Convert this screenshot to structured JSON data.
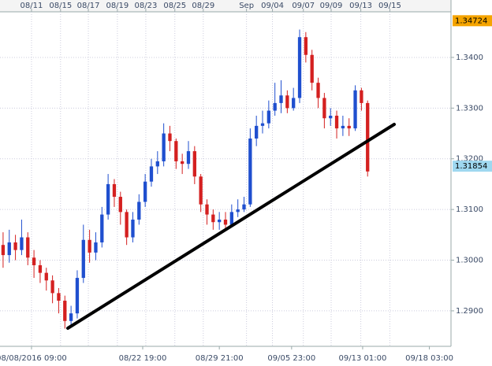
{
  "chart_data": {
    "type": "candlestick",
    "series": {
      "up_color": "#1f4fcf",
      "down_color": "#d42020",
      "open": [
        1.303,
        1.301,
        1.3035,
        1.302,
        1.3045,
        1.3005,
        1.299,
        1.2975,
        1.296,
        1.2935,
        1.292,
        1.288,
        1.2895,
        1.2965,
        1.304,
        1.3015,
        1.3035,
        1.309,
        1.315,
        1.3125,
        1.3095,
        1.3045,
        1.308,
        1.3115,
        1.3155,
        1.3185,
        1.3195,
        1.325,
        1.3235,
        1.3195,
        1.319,
        1.3215,
        1.3165,
        1.311,
        1.309,
        1.3075,
        1.308,
        1.307,
        1.3095,
        1.31,
        1.311,
        1.324,
        1.3265,
        1.327,
        1.3295,
        1.331,
        1.3325,
        1.33,
        1.332,
        1.344,
        1.3405,
        1.335,
        1.332,
        1.328,
        1.3285,
        1.326,
        1.3265,
        1.326,
        1.3335,
        1.331
      ],
      "high": [
        1.3055,
        1.306,
        1.305,
        1.308,
        1.3055,
        1.302,
        1.3,
        1.2985,
        1.297,
        1.2945,
        1.293,
        1.291,
        1.298,
        1.307,
        1.306,
        1.3055,
        1.3105,
        1.317,
        1.316,
        1.3135,
        1.31,
        1.3095,
        1.313,
        1.317,
        1.32,
        1.3215,
        1.327,
        1.3265,
        1.324,
        1.321,
        1.3235,
        1.3225,
        1.317,
        1.312,
        1.31,
        1.3095,
        1.3095,
        1.311,
        1.312,
        1.3125,
        1.326,
        1.3285,
        1.3295,
        1.3315,
        1.335,
        1.3355,
        1.3335,
        1.334,
        1.3455,
        1.345,
        1.3415,
        1.336,
        1.333,
        1.33,
        1.3295,
        1.3285,
        1.328,
        1.3345,
        1.334,
        1.3315
      ],
      "low": [
        1.2985,
        1.2995,
        1.3,
        1.301,
        1.299,
        1.2965,
        1.2955,
        1.294,
        1.2915,
        1.2895,
        1.2865,
        1.287,
        1.2885,
        1.2955,
        1.2995,
        1.3,
        1.3025,
        1.308,
        1.3105,
        1.307,
        1.303,
        1.3035,
        1.307,
        1.3105,
        1.3145,
        1.317,
        1.3185,
        1.3215,
        1.318,
        1.317,
        1.318,
        1.315,
        1.3095,
        1.307,
        1.306,
        1.306,
        1.306,
        1.3065,
        1.3085,
        1.3095,
        1.3105,
        1.3225,
        1.325,
        1.326,
        1.3285,
        1.329,
        1.329,
        1.3295,
        1.331,
        1.339,
        1.3335,
        1.33,
        1.326,
        1.3265,
        1.324,
        1.3245,
        1.3245,
        1.3255,
        1.3295,
        1.3165
      ],
      "close": [
        1.301,
        1.3035,
        1.302,
        1.3045,
        1.3005,
        1.299,
        1.2975,
        1.296,
        1.2935,
        1.292,
        1.288,
        1.2895,
        1.2965,
        1.304,
        1.3015,
        1.3035,
        1.309,
        1.315,
        1.3125,
        1.3095,
        1.3045,
        1.308,
        1.3115,
        1.3155,
        1.3185,
        1.3195,
        1.325,
        1.3235,
        1.3195,
        1.319,
        1.3215,
        1.3165,
        1.311,
        1.309,
        1.3075,
        1.308,
        1.307,
        1.3095,
        1.31,
        1.311,
        1.324,
        1.3265,
        1.327,
        1.3295,
        1.331,
        1.3325,
        1.33,
        1.332,
        1.344,
        1.3405,
        1.335,
        1.332,
        1.328,
        1.3285,
        1.326,
        1.3265,
        1.326,
        1.3335,
        1.331,
        1.3175
      ]
    },
    "xlim": [
      0,
      73
    ],
    "top_xticks": [
      {
        "value": 5.1,
        "label": "08/11"
      },
      {
        "value": 9.8,
        "label": "08/15"
      },
      {
        "value": 14.3,
        "label": "08/17"
      },
      {
        "value": 19.0,
        "label": "08/19"
      },
      {
        "value": 23.6,
        "label": "08/23"
      },
      {
        "value": 28.3,
        "label": "08/25"
      },
      {
        "value": 32.9,
        "label": "08/29"
      },
      {
        "value": 39.9,
        "label": "Sep"
      },
      {
        "value": 44.1,
        "label": "09/04"
      },
      {
        "value": 49.1,
        "label": "09/07"
      },
      {
        "value": 53.6,
        "label": "09/09"
      },
      {
        "value": 58.4,
        "label": "09/13"
      },
      {
        "value": 63.1,
        "label": "09/15"
      }
    ],
    "xticks": [
      {
        "value": 5.1,
        "label": "08/08/2016 09:00"
      },
      {
        "value": 23.1,
        "label": "08/22 19:00"
      },
      {
        "value": 35.5,
        "label": "08/29 21:00"
      },
      {
        "value": 47.2,
        "label": "09/05 23:00"
      },
      {
        "value": 58.7,
        "label": "09/13 01:00"
      },
      {
        "value": 69.5,
        "label": "09/18 03:00"
      }
    ],
    "ylim": [
      1.283,
      1.349
    ],
    "yticks": [
      {
        "value": 1.29,
        "label": "1.2900"
      },
      {
        "value": 1.3,
        "label": "1.3000"
      },
      {
        "value": 1.31,
        "label": "1.3100"
      },
      {
        "value": 1.32,
        "label": "1.3200"
      },
      {
        "value": 1.33,
        "label": "1.3300"
      },
      {
        "value": 1.34,
        "label": "1.3400"
      }
    ],
    "price_tags": [
      1.34724,
      1.31854
    ],
    "price_tag_colors": [
      "#f5a400",
      "#9fd8f0"
    ],
    "grid": true
  }
}
